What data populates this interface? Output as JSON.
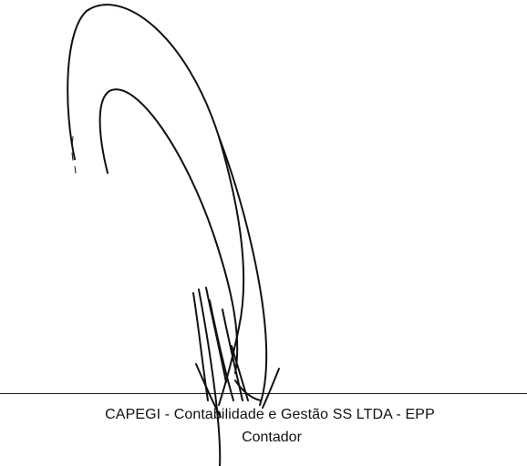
{
  "signature": {
    "company": "CAPEGI - Contabilidade e Gestão SS LTDA - EPP",
    "role": "Contador"
  },
  "colors": {
    "ink": "#111111",
    "paper": "#ffffff"
  }
}
